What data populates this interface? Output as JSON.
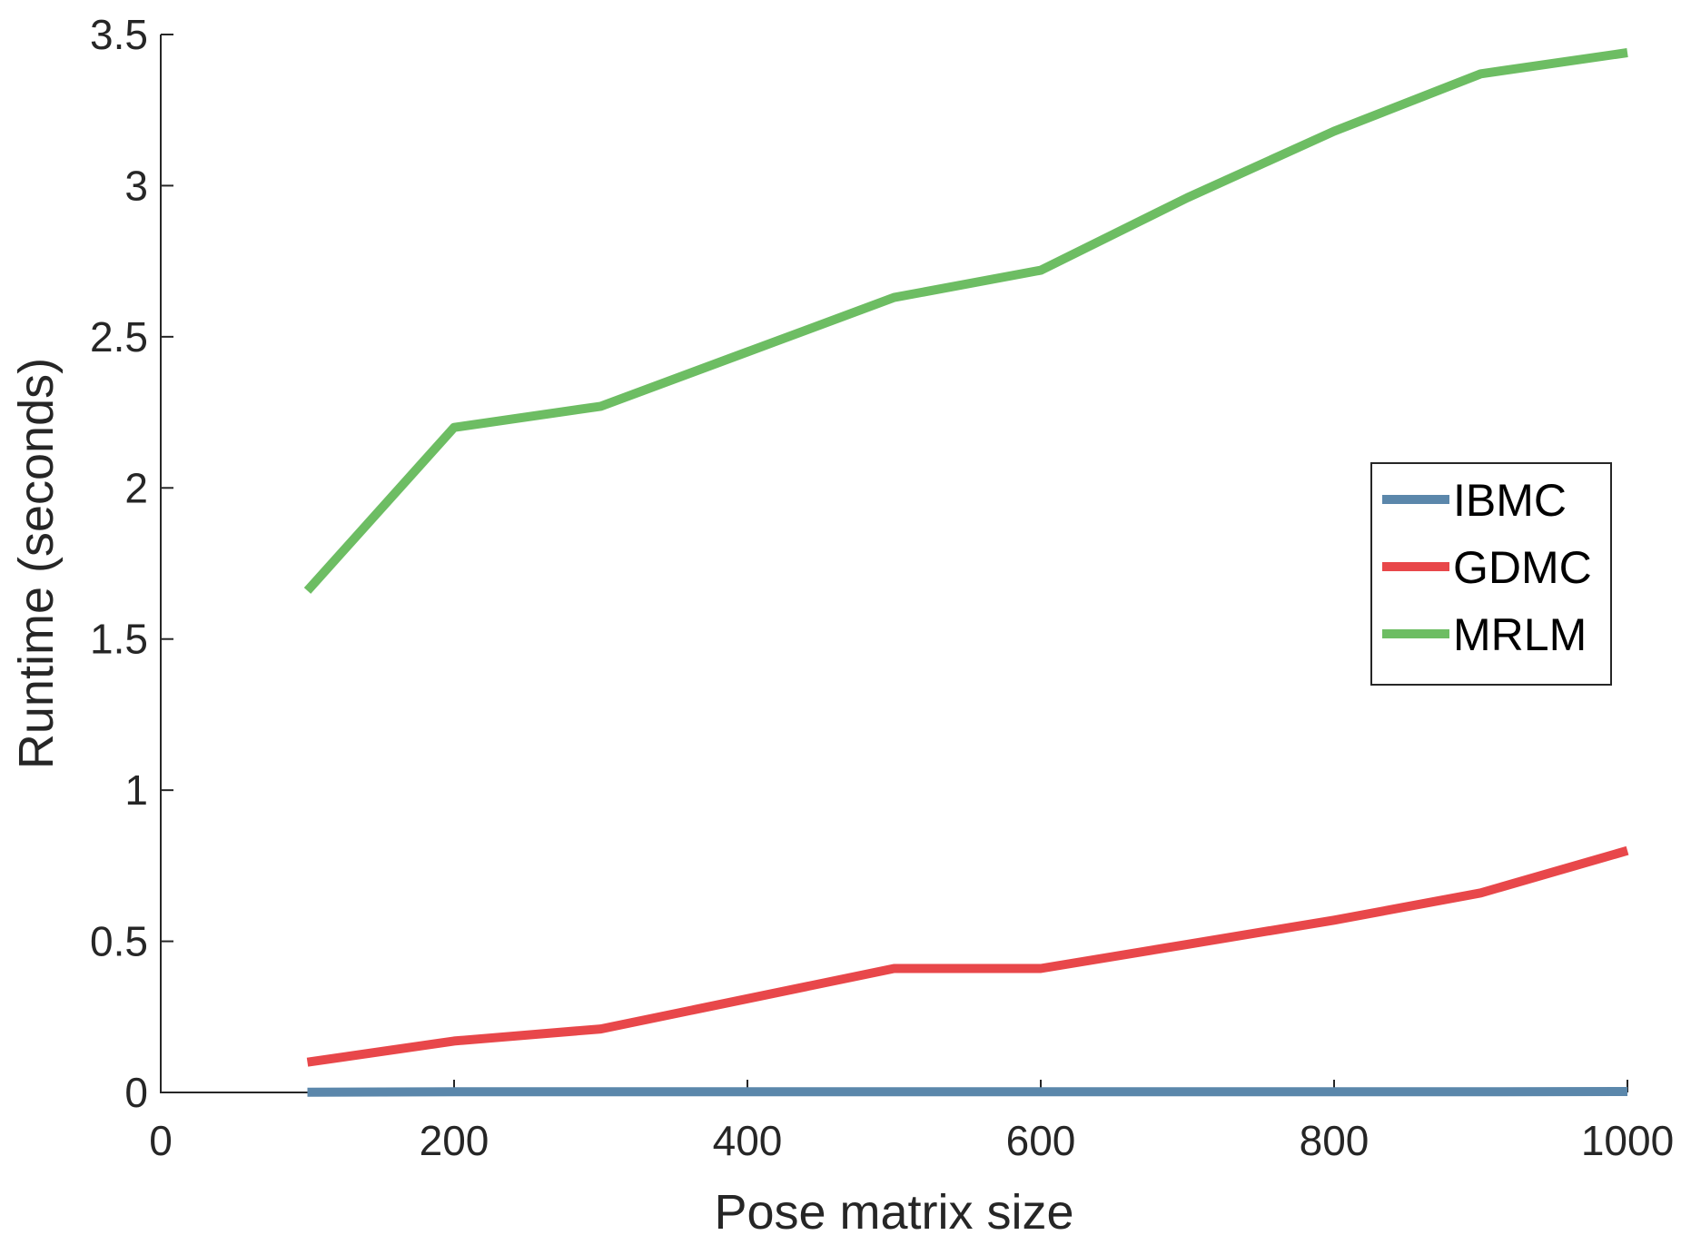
{
  "chart_data": {
    "type": "line",
    "title": "",
    "xlabel": "Pose matrix size",
    "ylabel": "Runtime (seconds)",
    "xlim": [
      0,
      1000
    ],
    "ylim": [
      0,
      3.5
    ],
    "xticks": [
      "0",
      "200",
      "400",
      "600",
      "800",
      "1000"
    ],
    "yticks": [
      "0",
      "0.5",
      "1",
      "1.5",
      "2",
      "2.5",
      "3",
      "3.5"
    ],
    "grid": false,
    "legend_position": "right",
    "x": [
      100,
      200,
      300,
      400,
      500,
      600,
      700,
      800,
      900,
      1000
    ],
    "series": [
      {
        "name": "IBMC",
        "color": "#5b87ab",
        "values": [
          0.001,
          0.002,
          0.002,
          0.002,
          0.002,
          0.002,
          0.002,
          0.002,
          0.002,
          0.003
        ]
      },
      {
        "name": "GDMC",
        "color": "#e8474a",
        "values": [
          0.1,
          0.17,
          0.21,
          0.31,
          0.41,
          0.41,
          0.49,
          0.57,
          0.66,
          0.8
        ]
      },
      {
        "name": "MRLM",
        "color": "#6dbd63",
        "values": [
          1.66,
          2.2,
          2.27,
          2.45,
          2.63,
          2.72,
          2.96,
          3.18,
          3.37,
          3.44
        ]
      }
    ]
  }
}
